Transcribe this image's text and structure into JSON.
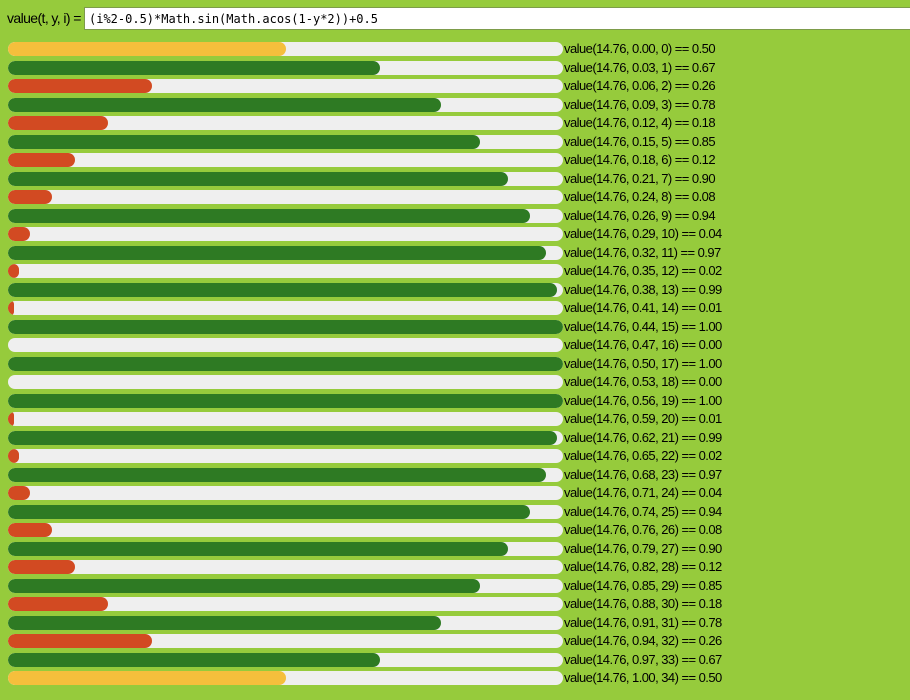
{
  "header": {
    "label": "value(t, y, i) =",
    "expression": "(i%2-0.5)*Math.sin(Math.acos(1-y*2))+0.5"
  },
  "colors": {
    "background": "#96cb3c",
    "track": "#efefef",
    "high": "#2e7a23",
    "low": "#d24a22",
    "mid": "#f5bf3c"
  },
  "rows": [
    {
      "label": "value(14.76, 0.00, 0) == 0.50",
      "value": 0.5,
      "color": "mid"
    },
    {
      "label": "value(14.76, 0.03, 1) == 0.67",
      "value": 0.67,
      "color": "high"
    },
    {
      "label": "value(14.76, 0.06, 2) == 0.26",
      "value": 0.26,
      "color": "low"
    },
    {
      "label": "value(14.76, 0.09, 3) == 0.78",
      "value": 0.78,
      "color": "high"
    },
    {
      "label": "value(14.76, 0.12, 4) == 0.18",
      "value": 0.18,
      "color": "low"
    },
    {
      "label": "value(14.76, 0.15, 5) == 0.85",
      "value": 0.85,
      "color": "high"
    },
    {
      "label": "value(14.76, 0.18, 6) == 0.12",
      "value": 0.12,
      "color": "low"
    },
    {
      "label": "value(14.76, 0.21, 7) == 0.90",
      "value": 0.9,
      "color": "high"
    },
    {
      "label": "value(14.76, 0.24, 8) == 0.08",
      "value": 0.08,
      "color": "low"
    },
    {
      "label": "value(14.76, 0.26, 9) == 0.94",
      "value": 0.94,
      "color": "high"
    },
    {
      "label": "value(14.76, 0.29, 10) == 0.04",
      "value": 0.04,
      "color": "low"
    },
    {
      "label": "value(14.76, 0.32, 11) == 0.97",
      "value": 0.97,
      "color": "high"
    },
    {
      "label": "value(14.76, 0.35, 12) == 0.02",
      "value": 0.02,
      "color": "low"
    },
    {
      "label": "value(14.76, 0.38, 13) == 0.99",
      "value": 0.99,
      "color": "high"
    },
    {
      "label": "value(14.76, 0.41, 14) == 0.01",
      "value": 0.01,
      "color": "low"
    },
    {
      "label": "value(14.76, 0.44, 15) == 1.00",
      "value": 1.0,
      "color": "high"
    },
    {
      "label": "value(14.76, 0.47, 16) == 0.00",
      "value": 0.0,
      "color": "low"
    },
    {
      "label": "value(14.76, 0.50, 17) == 1.00",
      "value": 1.0,
      "color": "high"
    },
    {
      "label": "value(14.76, 0.53, 18) == 0.00",
      "value": 0.0,
      "color": "low"
    },
    {
      "label": "value(14.76, 0.56, 19) == 1.00",
      "value": 1.0,
      "color": "high"
    },
    {
      "label": "value(14.76, 0.59, 20) == 0.01",
      "value": 0.01,
      "color": "low"
    },
    {
      "label": "value(14.76, 0.62, 21) == 0.99",
      "value": 0.99,
      "color": "high"
    },
    {
      "label": "value(14.76, 0.65, 22) == 0.02",
      "value": 0.02,
      "color": "low"
    },
    {
      "label": "value(14.76, 0.68, 23) == 0.97",
      "value": 0.97,
      "color": "high"
    },
    {
      "label": "value(14.76, 0.71, 24) == 0.04",
      "value": 0.04,
      "color": "low"
    },
    {
      "label": "value(14.76, 0.74, 25) == 0.94",
      "value": 0.94,
      "color": "high"
    },
    {
      "label": "value(14.76, 0.76, 26) == 0.08",
      "value": 0.08,
      "color": "low"
    },
    {
      "label": "value(14.76, 0.79, 27) == 0.90",
      "value": 0.9,
      "color": "high"
    },
    {
      "label": "value(14.76, 0.82, 28) == 0.12",
      "value": 0.12,
      "color": "low"
    },
    {
      "label": "value(14.76, 0.85, 29) == 0.85",
      "value": 0.85,
      "color": "high"
    },
    {
      "label": "value(14.76, 0.88, 30) == 0.18",
      "value": 0.18,
      "color": "low"
    },
    {
      "label": "value(14.76, 0.91, 31) == 0.78",
      "value": 0.78,
      "color": "high"
    },
    {
      "label": "value(14.76, 0.94, 32) == 0.26",
      "value": 0.26,
      "color": "low"
    },
    {
      "label": "value(14.76, 0.97, 33) == 0.67",
      "value": 0.67,
      "color": "high"
    },
    {
      "label": "value(14.76, 1.00, 34) == 0.50",
      "value": 0.5,
      "color": "mid"
    }
  ]
}
